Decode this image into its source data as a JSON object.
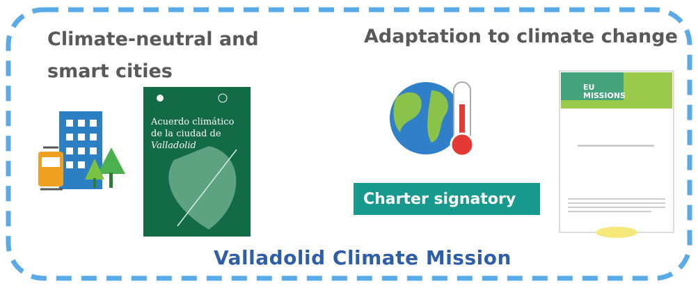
{
  "left_section": {
    "title": "Climate-neutral and smart cities",
    "booklet": {
      "title_line1": "Acuerdo climático",
      "title_line2": "de la ciudad de",
      "title_line3": "Valladolid"
    }
  },
  "right_section": {
    "title": "Adaptation to climate change",
    "badge": "Charter signatory",
    "document": {
      "banner": "EU MISSIONS"
    }
  },
  "footer": {
    "title": "Valladolid Climate Mission"
  }
}
